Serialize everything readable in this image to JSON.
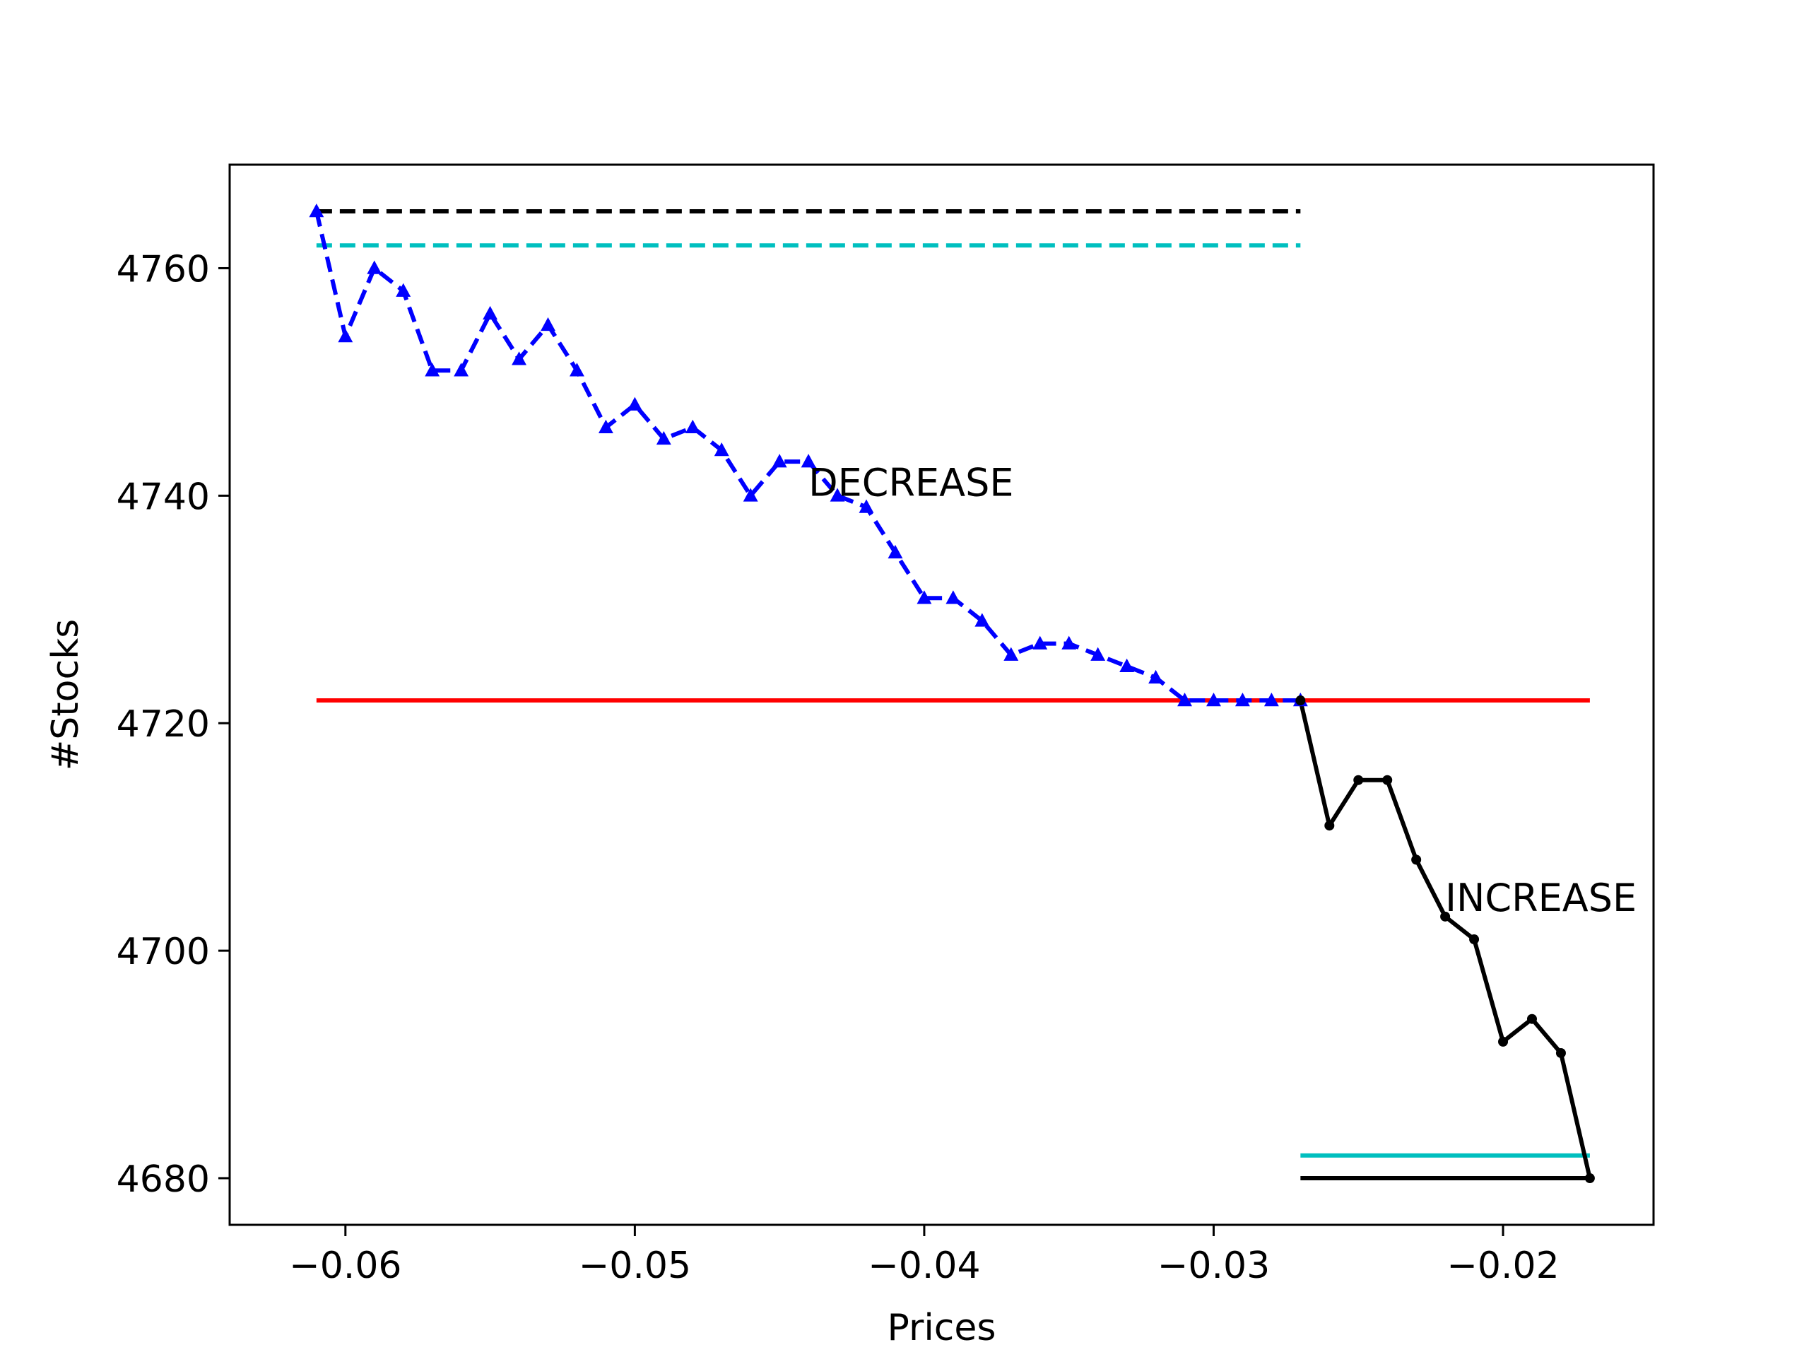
{
  "chart_data": {
    "type": "line",
    "title": "",
    "xlabel": "Prices",
    "ylabel": "#Stocks",
    "xlim": [
      -0.064,
      -0.0148
    ],
    "ylim": [
      4675.9,
      4769.1
    ],
    "xticks": [
      -0.06,
      -0.05,
      -0.04,
      -0.03,
      -0.02
    ],
    "xtick_labels": [
      "−0.06",
      "−0.05",
      "−0.04",
      "−0.03",
      "−0.02"
    ],
    "yticks": [
      4680,
      4700,
      4720,
      4740,
      4760
    ],
    "ytick_labels": [
      "4680",
      "4700",
      "4720",
      "4740",
      "4760"
    ],
    "grid": false,
    "legend": "none",
    "series": [
      {
        "color": "#0000ff",
        "style": "dashed",
        "marker": "triangle",
        "x": [
          -0.061,
          -0.06,
          -0.059,
          -0.058,
          -0.057,
          -0.056,
          -0.055,
          -0.054,
          -0.053,
          -0.052,
          -0.051,
          -0.05,
          -0.049,
          -0.048,
          -0.047,
          -0.046,
          -0.045,
          -0.044,
          -0.043,
          -0.042,
          -0.041,
          -0.04,
          -0.039,
          -0.038,
          -0.037,
          -0.036,
          -0.035,
          -0.034,
          -0.033,
          -0.032,
          -0.031,
          -0.03,
          -0.029,
          -0.028,
          -0.027
        ],
        "y": [
          4765,
          4754,
          4760,
          4758,
          4751,
          4751,
          4756,
          4752,
          4755,
          4751,
          4746,
          4748,
          4745,
          4746,
          4744,
          4740,
          4743,
          4743,
          4740,
          4739,
          4735,
          4731,
          4731,
          4729,
          4726,
          4727,
          4727,
          4726,
          4725,
          4724,
          4722,
          4722,
          4722,
          4722,
          4722
        ]
      },
      {
        "color": "#000000",
        "style": "solid",
        "marker": "dot",
        "x": [
          -0.027,
          -0.026,
          -0.025,
          -0.024,
          -0.023,
          -0.022,
          -0.021,
          -0.02,
          -0.019,
          -0.018,
          -0.017
        ],
        "y": [
          4722,
          4711,
          4715,
          4715,
          4708,
          4703,
          4701,
          4692,
          4694,
          4691,
          4680
        ]
      }
    ],
    "reference_lines": [
      {
        "color": "#000000",
        "style": "dashed",
        "y": 4765,
        "x_range": [
          -0.061,
          -0.027
        ]
      },
      {
        "color": "#00bfbf",
        "style": "dashed",
        "y": 4762,
        "x_range": [
          -0.061,
          -0.027
        ]
      },
      {
        "color": "#ff0000",
        "style": "solid",
        "y": 4722,
        "x_range": [
          -0.061,
          -0.017
        ]
      },
      {
        "color": "#00bfbf",
        "style": "solid",
        "y": 4682,
        "x_range": [
          -0.027,
          -0.017
        ]
      },
      {
        "color": "#000000",
        "style": "solid",
        "y": 4680,
        "x_range": [
          -0.027,
          -0.017
        ]
      }
    ],
    "annotations": [
      {
        "text": "DECREASE",
        "x": -0.044,
        "y": 4740
      },
      {
        "text": "INCREASE",
        "x": -0.022,
        "y": 4703.5
      }
    ]
  }
}
